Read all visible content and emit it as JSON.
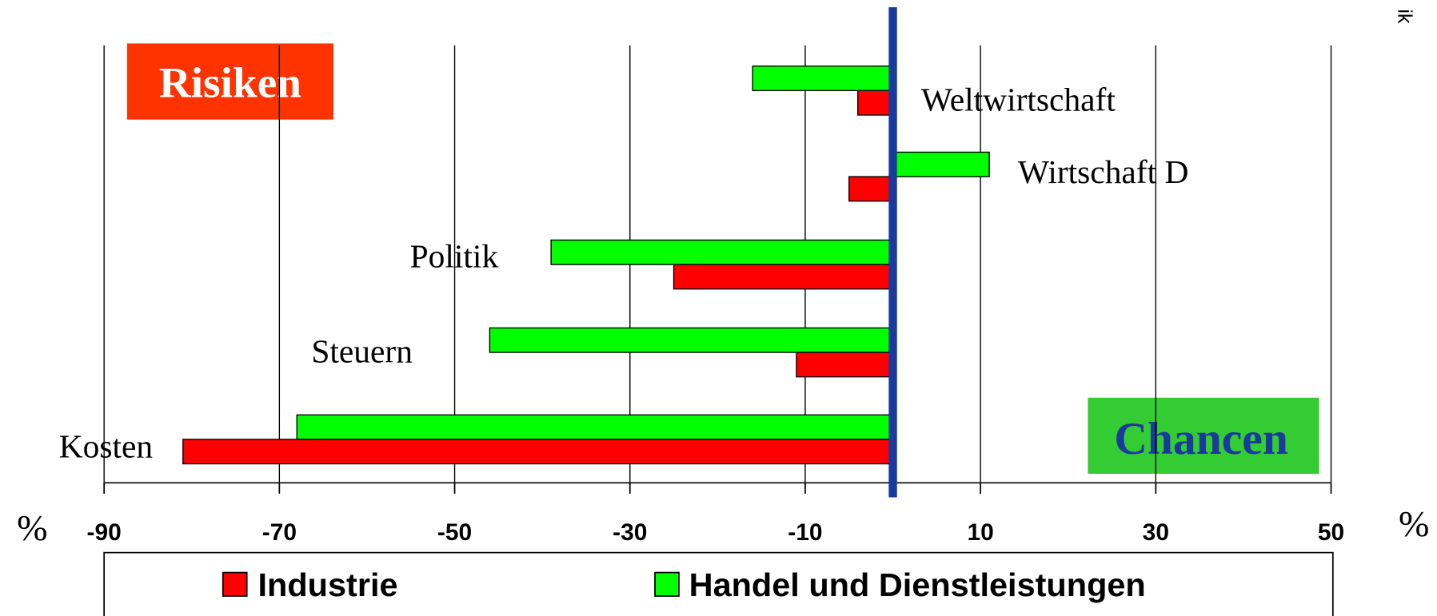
{
  "chart_data": {
    "type": "hbar",
    "categories": [
      "Weltwirtschaft",
      "Wirtschaft D",
      "Politik",
      "Steuern",
      "Kosten"
    ],
    "series": [
      {
        "name": "Industrie",
        "color": "#ff0000",
        "values": [
          -4,
          -5,
          -25,
          -11,
          -81
        ]
      },
      {
        "name": "Handel und Dienstleistungen",
        "color": "#00ff00",
        "values": [
          -16,
          11,
          -39,
          -46,
          -68
        ]
      }
    ],
    "xlim": [
      -90,
      50
    ],
    "xticks": [
      -90,
      -70,
      -50,
      -30,
      -10,
      10,
      30,
      50
    ],
    "grid": true,
    "annotations": [
      "Risiken",
      "Chancen"
    ],
    "axis_unit_left": "%",
    "axis_unit_right": "%",
    "edge_text": "ik"
  }
}
